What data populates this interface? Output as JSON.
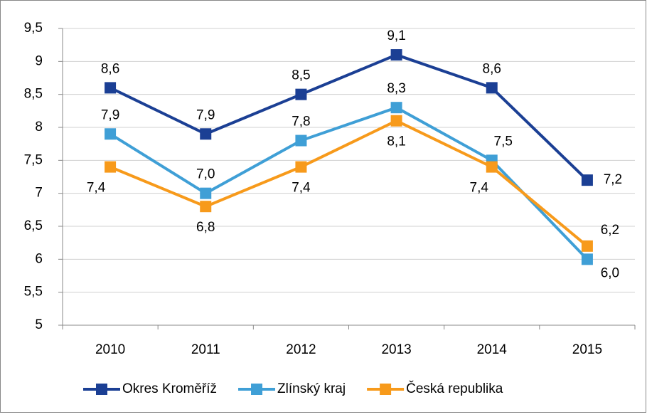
{
  "chart_data": {
    "type": "line",
    "categories": [
      "2010",
      "2011",
      "2012",
      "2013",
      "2014",
      "2015"
    ],
    "series": [
      {
        "name": "Okres Kroměříž",
        "color": "#1b3f94",
        "values": [
          8.6,
          7.9,
          8.5,
          9.1,
          8.6,
          7.2
        ],
        "value_labels": [
          "8,6",
          "7,9",
          "8,5",
          "9,1",
          "8,6",
          "7,2"
        ]
      },
      {
        "name": "Zlínský kraj",
        "color": "#3f9fd6",
        "values": [
          7.9,
          7.0,
          7.8,
          8.3,
          7.5,
          6.0
        ],
        "value_labels": [
          "7,9",
          "7,0",
          "7,8",
          "8,3",
          "7,5",
          "6,0"
        ]
      },
      {
        "name": "Česká republika",
        "color": "#f79a1b",
        "values": [
          7.4,
          6.8,
          7.4,
          8.1,
          7.4,
          6.2
        ],
        "value_labels": [
          "7,4",
          "6,8",
          "7,4",
          "8,1",
          "7,4",
          "6,2"
        ]
      }
    ],
    "ylim": [
      5,
      9.5
    ],
    "yticks": [
      5,
      {
        "value": 5.5,
        "label": "5,5"
      },
      6,
      {
        "value": 6.5,
        "label": "6,5"
      },
      7,
      {
        "value": 7.5,
        "label": "7,5"
      },
      8,
      {
        "value": 8.5,
        "label": "8,5"
      },
      9,
      {
        "value": 9.5,
        "label": "9,5"
      }
    ],
    "grid": true,
    "legend": "bottom"
  }
}
